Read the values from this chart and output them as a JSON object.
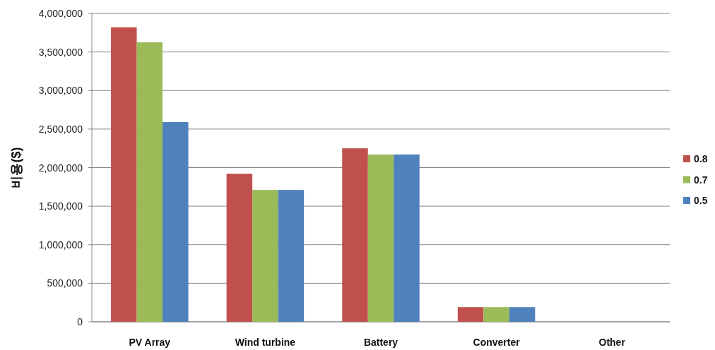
{
  "chart_data": {
    "type": "bar",
    "ylabel": "비용($)",
    "categories": [
      "PV Array",
      "Wind turbine",
      "Battery",
      "Converter",
      "Other"
    ],
    "series": [
      {
        "name": "0.8",
        "color": "#c0504d",
        "values": [
          3820000,
          1920000,
          2250000,
          190000,
          0
        ]
      },
      {
        "name": "0.7",
        "color": "#9bbb59",
        "values": [
          3625000,
          1710000,
          2170000,
          190000,
          0
        ]
      },
      {
        "name": "0.5",
        "color": "#4f81bd",
        "values": [
          2590000,
          1710000,
          2170000,
          190000,
          0
        ]
      }
    ],
    "ylim": [
      0,
      4000000
    ],
    "yticks": [
      0,
      {
        "value": 500000,
        "label": "500,000"
      },
      {
        "value": 1000000,
        "label": "1,000,000"
      },
      {
        "value": 1500000,
        "label": "1,500,000"
      },
      {
        "value": 2000000,
        "label": "2,000,000"
      },
      {
        "value": 2500000,
        "label": "2,500,000"
      },
      {
        "value": 3000000,
        "label": "3,000,000"
      },
      {
        "value": 3500000,
        "label": "3,500,000"
      },
      {
        "value": 4000000,
        "label": "4,000,000"
      }
    ],
    "grid": "y",
    "legend": "right"
  }
}
